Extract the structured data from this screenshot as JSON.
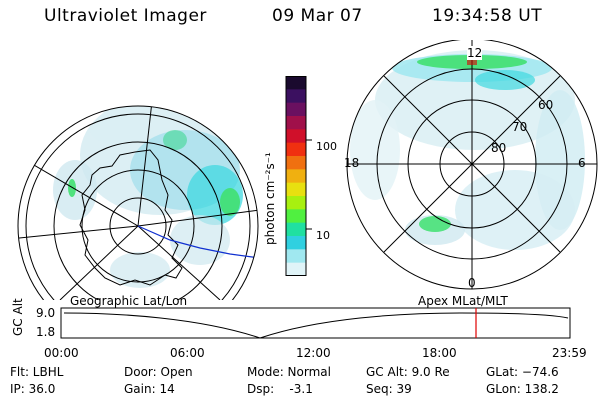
{
  "header": {
    "title": "Ultraviolet Imager",
    "date": "09 Mar 07",
    "time": "19:34:58 UT"
  },
  "colorbar": {
    "unit_label": "photon cm⁻²s⁻¹",
    "ticks": [
      "100",
      "10"
    ],
    "colors": [
      "#1a0a2e",
      "#3b1060",
      "#6a1060",
      "#a0104a",
      "#d0102a",
      "#f03010",
      "#f07010",
      "#f0b010",
      "#e8e010",
      "#a8f010",
      "#50f040",
      "#20e0a0",
      "#30d0e0",
      "#a0e8f0",
      "#e0f4f8"
    ]
  },
  "geo_panel": {
    "label": "Geographic Lat/Lon"
  },
  "apex_panel": {
    "label": "Apex  MLat/MLT",
    "mlt_labels": {
      "top": "12",
      "bottom": "0",
      "left": "18",
      "right": "6"
    },
    "lat_labels": [
      "60",
      "70",
      "80"
    ]
  },
  "timeline": {
    "y_axis_label": "GC Alt",
    "y_ticks": [
      "9.0",
      "1.8"
    ],
    "x_ticks": [
      "00:00",
      "06:00",
      "12:00",
      "18:00",
      "23:59"
    ],
    "current_marker_color": "#e00000"
  },
  "status": {
    "filter": "Flt: LBHL",
    "ip": "IP: 36.0",
    "door": "Door: Open",
    "gain": "Gain: 14",
    "mode": "Mode: Normal",
    "dsp": "Dsp:    -3.1",
    "gcalt": "GC Alt: 9.0 Re",
    "seq": "Seq: 39",
    "glat": "GLat: −74.6",
    "glon": "GLon: 138.2"
  }
}
